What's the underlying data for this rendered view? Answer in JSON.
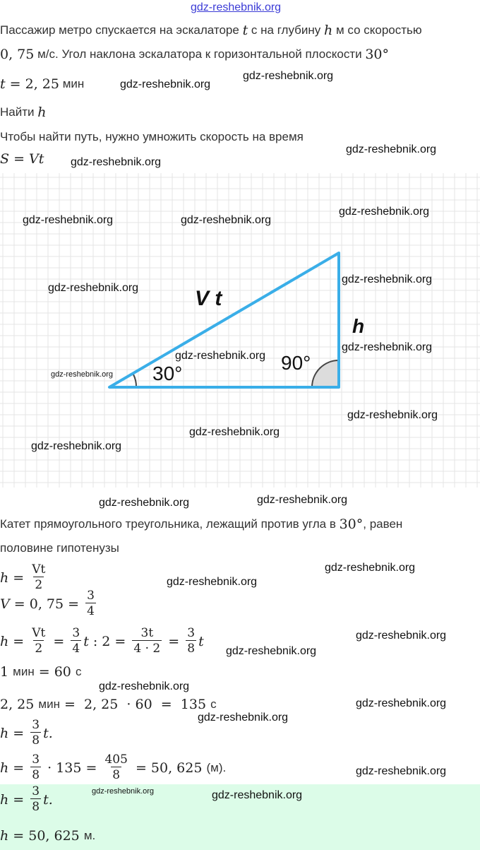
{
  "site_link": "gdz-reshebnik.org",
  "colors": {
    "triangle": "#3aaee8",
    "answer_bg": "#dcfce8",
    "grid": "#e4e4e4",
    "angle_fill": "#dcdcdc"
  },
  "problem": [
    [
      [
        "s",
        "Пассажир метро спускается на эскалаторе "
      ],
      [
        "mi",
        "t"
      ],
      [
        "s",
        " с на глубину "
      ],
      [
        "mi",
        "h"
      ],
      [
        "s",
        " м со скоростью"
      ]
    ],
    [
      [
        "m",
        "0, 75"
      ],
      [
        "s",
        " м/с. Угол наклона эскалатора к горизонтальной плоскости "
      ],
      [
        "m",
        "30°"
      ]
    ],
    [
      [
        "mi",
        "t"
      ],
      [
        "m",
        " = 2, 25"
      ],
      [
        "s",
        " мин"
      ]
    ],
    [
      [
        "s",
        "Найти "
      ],
      [
        "mi",
        "h"
      ]
    ],
    [
      [
        "s",
        "Чтобы найти путь, нужно умножить скорость на время"
      ]
    ],
    [
      [
        "mi",
        "S"
      ],
      [
        "m",
        " = "
      ],
      [
        "mi",
        "Vt"
      ]
    ]
  ],
  "diagram": {
    "hypotenuse_label": "V t",
    "leg_label": "h",
    "right_angle_label": "90°",
    "acute_angle_label": "30°"
  },
  "solution": [
    [
      [
        "s",
        "Катет прямоугольного треугольника, лежащий против угла в "
      ],
      [
        "m",
        "30°"
      ],
      [
        "s",
        ", равен"
      ]
    ],
    [
      [
        "s",
        "половине гипотенузы"
      ]
    ],
    [
      [
        "mi",
        "h"
      ],
      [
        "m",
        " = "
      ],
      [
        "f",
        "Vt",
        "2"
      ]
    ],
    [
      [
        "mi",
        "V"
      ],
      [
        "m",
        " = 0, 75 = "
      ],
      [
        "f",
        "3",
        "4"
      ]
    ],
    [
      [
        "mi",
        "h"
      ],
      [
        "m",
        " = "
      ],
      [
        "f",
        "Vt",
        "2"
      ],
      [
        "m",
        " = "
      ],
      [
        "f",
        "3",
        "4"
      ],
      [
        "mi",
        "t"
      ],
      [
        "m",
        " : 2 = "
      ],
      [
        "f",
        "3t",
        "4 · 2"
      ],
      [
        "m",
        " = "
      ],
      [
        "f",
        "3",
        "8"
      ],
      [
        "mi",
        "t"
      ]
    ],
    [
      [
        "m",
        "1 "
      ],
      [
        "s",
        "мин"
      ],
      [
        "m",
        " = 60 "
      ],
      [
        "s",
        "с"
      ]
    ],
    [
      [
        "m",
        "2, 25 "
      ],
      [
        "s",
        "мин"
      ],
      [
        "m",
        " =  2, 25  · 60  =  135 "
      ],
      [
        "s",
        "с"
      ]
    ],
    [
      [
        "mi",
        "h"
      ],
      [
        "m",
        " = "
      ],
      [
        "f",
        "3",
        "8"
      ],
      [
        "mi",
        "t."
      ]
    ],
    [
      [
        "mi",
        "h"
      ],
      [
        "m",
        " = "
      ],
      [
        "f",
        "3",
        "8"
      ],
      [
        "m",
        " · 135 = "
      ],
      [
        "f",
        "405",
        "8"
      ],
      [
        "m",
        " = 50, 625 "
      ],
      [
        "s",
        "(м)."
      ]
    ]
  ],
  "answer": [
    [
      [
        "mi",
        "h"
      ],
      [
        "m",
        " = "
      ],
      [
        "f",
        "3",
        "8"
      ],
      [
        "mi",
        "t."
      ]
    ],
    [
      [
        "mi",
        "h"
      ],
      [
        "m",
        " = 50, 625 "
      ],
      [
        "s",
        "м."
      ]
    ]
  ],
  "watermarks": [
    "gdz-reshebnik.org",
    "gdz-reshebnik.org",
    "gdz-reshebnik.org",
    "gdz-reshebnik.org",
    "gdz-reshebnik.org",
    "gdz-reshebnik.org",
    "gdz-reshebnik.org",
    "gdz-reshebnik.org",
    "gdz-reshebnik.org",
    "gdz-reshebnik.org",
    "gdz-reshebnik.org",
    "gdz-reshebnik.org",
    "gdz-reshebnik.org",
    "gdz-reshebnik.org",
    "gdz-reshebnik.org",
    "gdz-reshebnik.org",
    "gdz-reshebnik.org",
    "gdz-reshebnik.org",
    "gdz-reshebnik.org",
    "gdz-reshebnik.org",
    "gdz-reshebnik.org",
    "gdz-reshebnik.org",
    "gdz-reshebnik.org",
    "gdz-reshebnik.org",
    "gdz-reshebnik.org"
  ]
}
